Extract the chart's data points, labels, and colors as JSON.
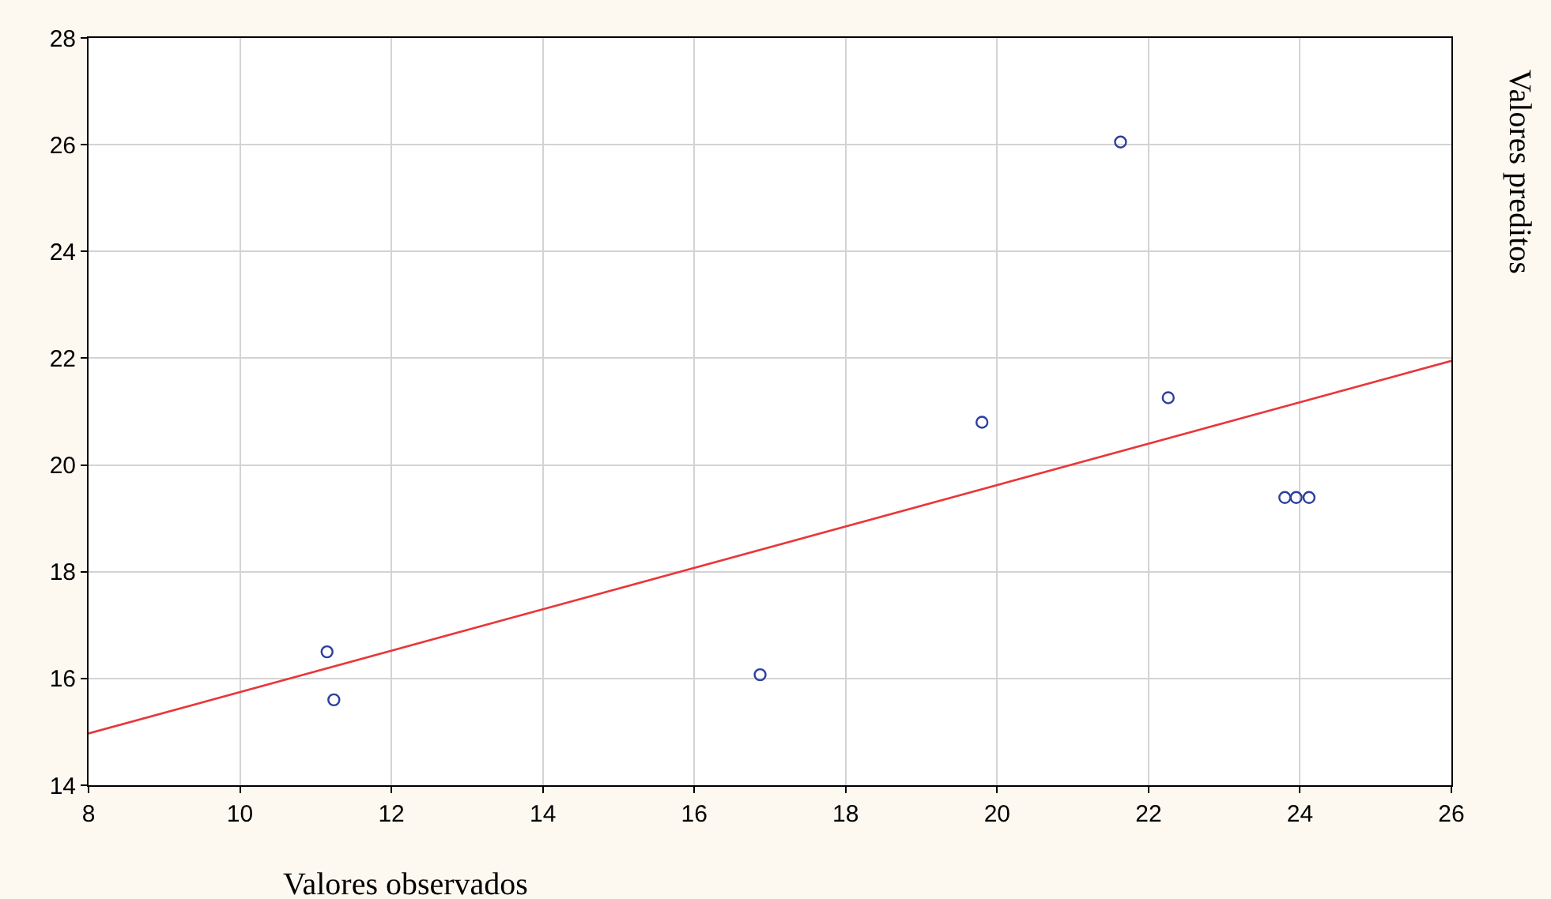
{
  "chart_data": {
    "type": "scatter",
    "xlabel": "Valores observados",
    "ylabel": "Valores preditos",
    "xlim": [
      8,
      26
    ],
    "xticks": [
      8,
      10,
      12,
      14,
      16,
      18,
      20,
      22,
      24,
      26
    ],
    "ylim": [
      14,
      28
    ],
    "yticks": [
      14,
      16,
      18,
      20,
      22,
      24,
      26,
      28
    ],
    "grid": true,
    "series": [
      {
        "color": "#2b3f9e",
        "marker": "circle",
        "x": [
          11.15,
          11.24,
          16.87,
          19.8,
          21.63,
          22.26,
          23.8,
          23.95,
          24.12
        ],
        "values": [
          16.5,
          15.6,
          16.07,
          20.8,
          26.05,
          21.26,
          19.39,
          19.39,
          19.39
        ]
      },
      {
        "type": "line",
        "color": "#e8373a",
        "x": [
          8,
          26
        ],
        "values": [
          14.97,
          21.95
        ]
      }
    ]
  }
}
